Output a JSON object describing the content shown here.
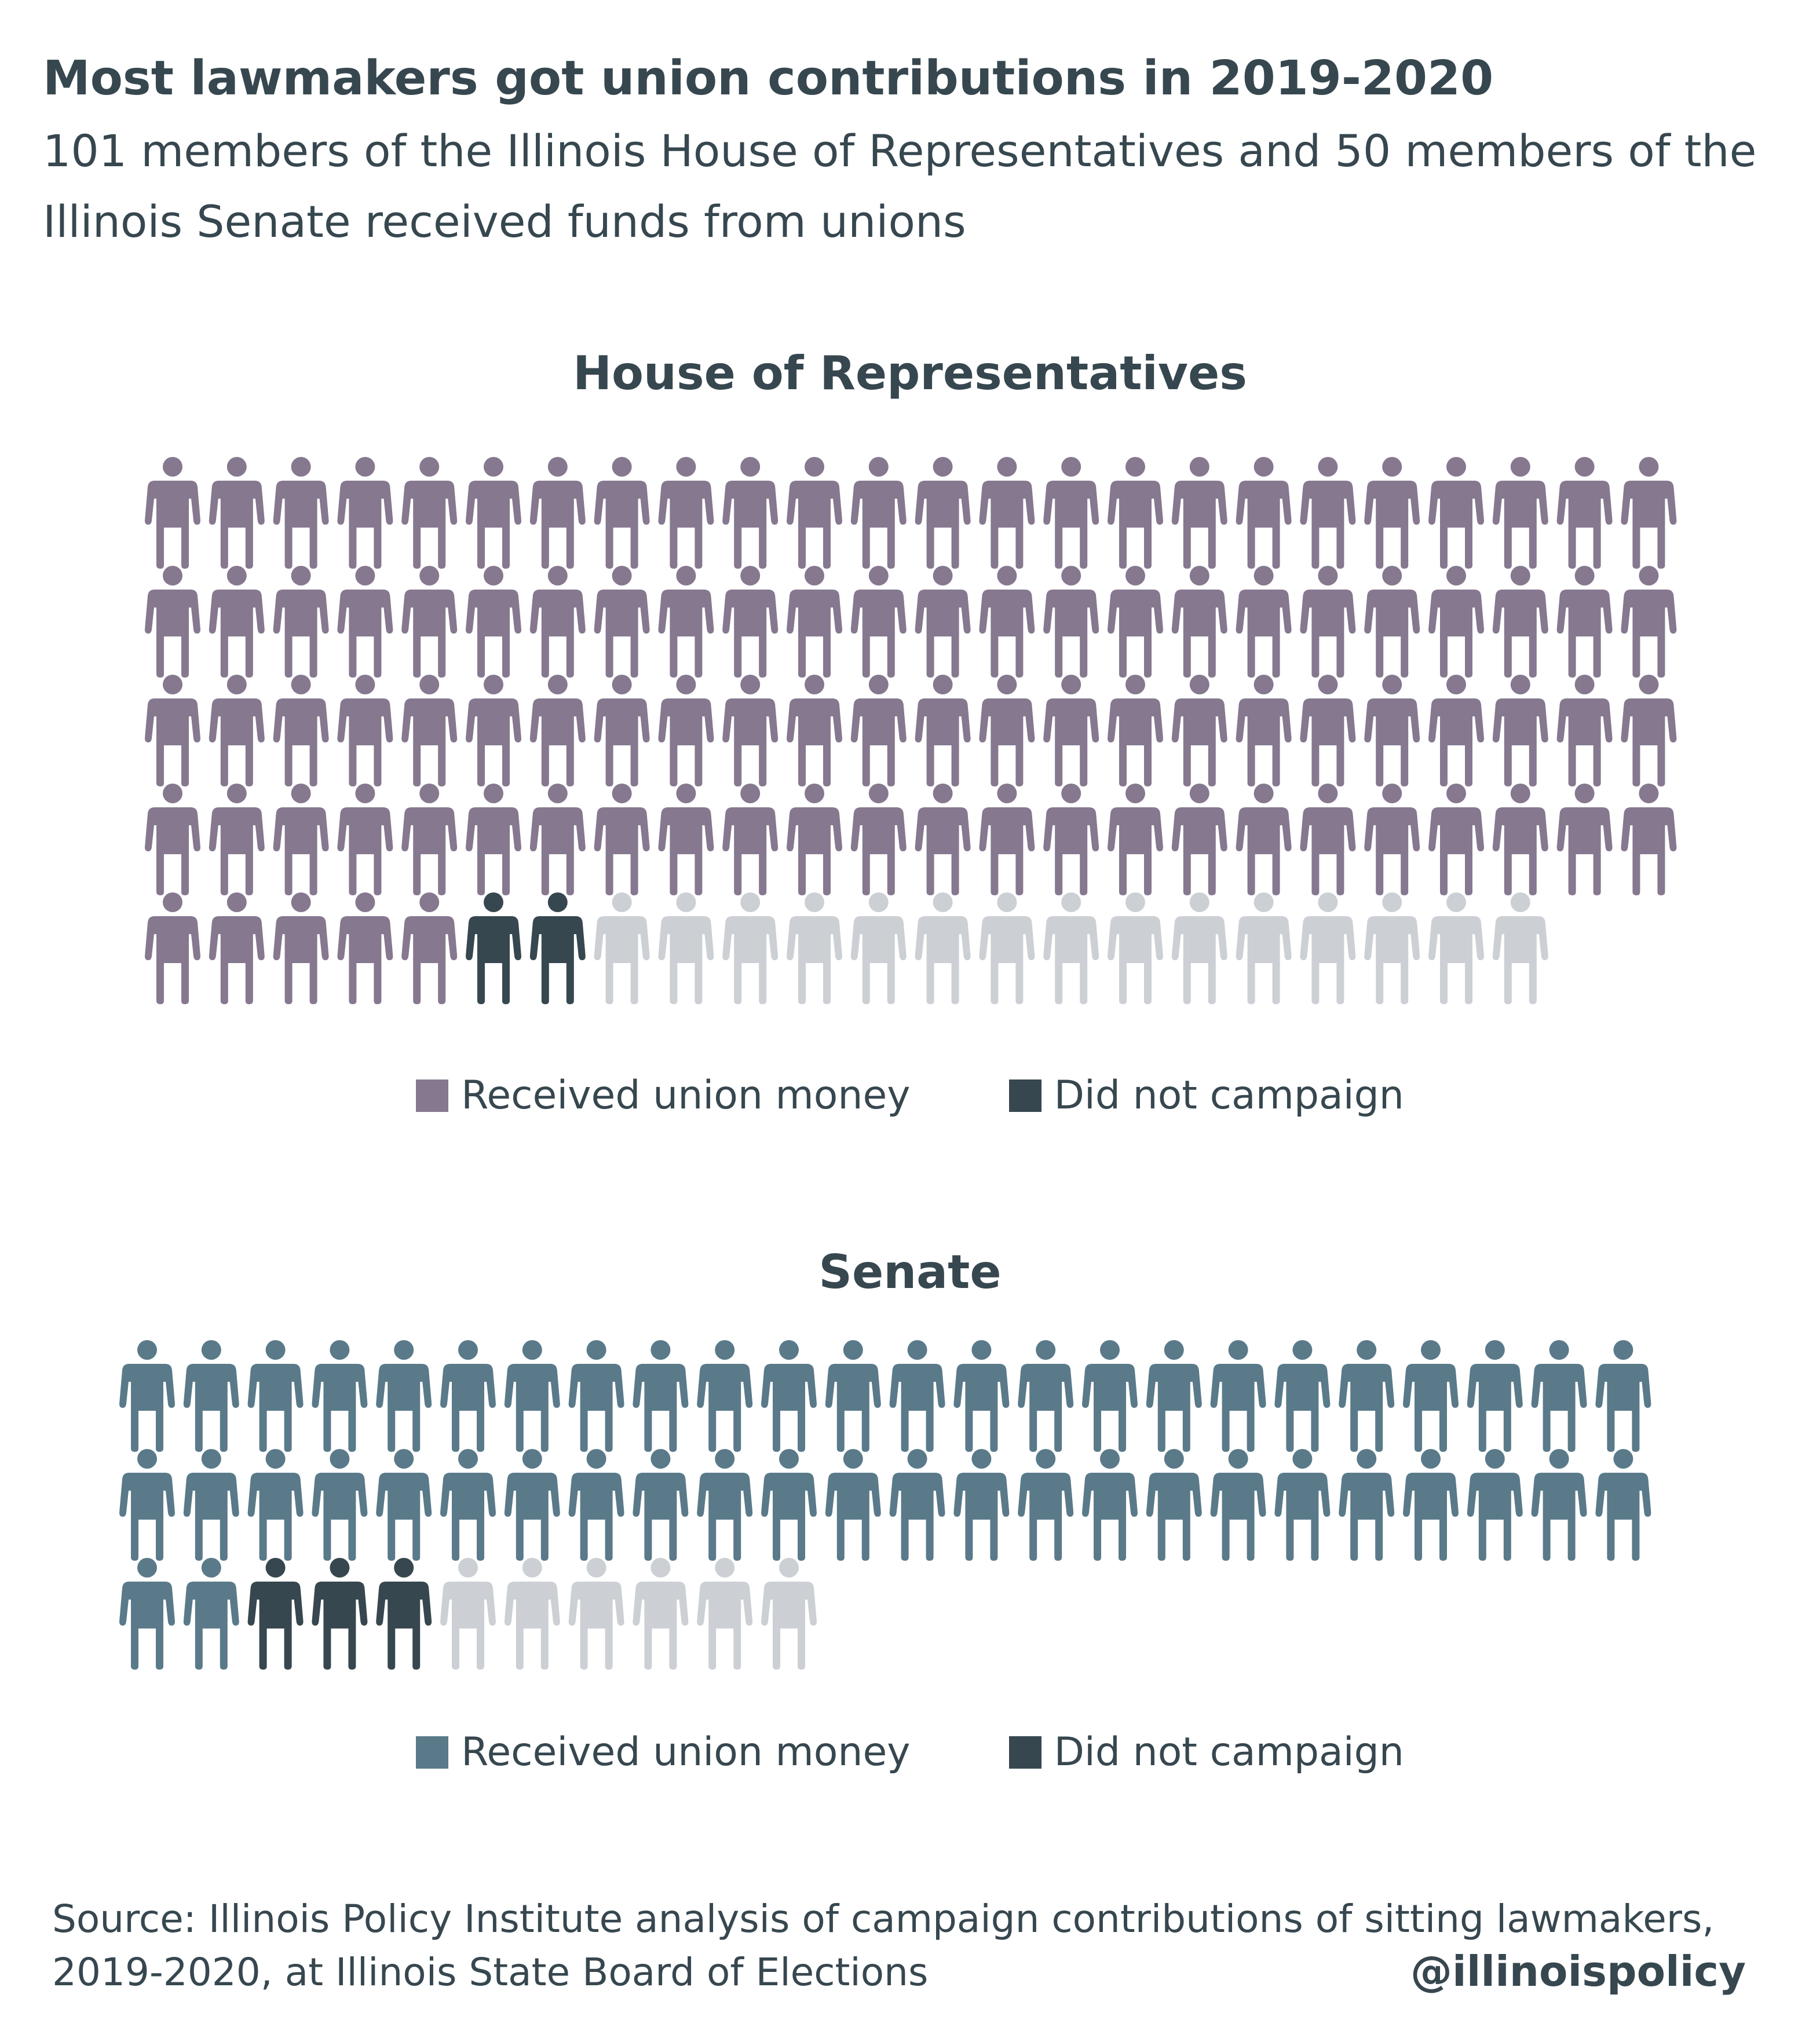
{
  "header": {
    "title": "Most lawmakers got union contributions in 2019-2020",
    "subtitle": "101 members of the Illinois House of Representatives and 50 members of the Illinois Senate received funds from unions"
  },
  "colors": {
    "house_received": "#85788f",
    "senate_received": "#5a7a8a",
    "did_not_campaign": "#37474f",
    "other": "#ccd0d4"
  },
  "chart_data": [
    {
      "type": "table",
      "chart_form": "isotype",
      "title": "House of Representatives",
      "icon": "person-icon",
      "icons_per_row": 24,
      "groups": [
        {
          "name": "Received union money",
          "count": 101,
          "color": "#85788f",
          "in_legend": true
        },
        {
          "name": "Did not campaign",
          "count": 2,
          "color": "#37474f",
          "in_legend": true
        },
        {
          "name": "",
          "count": 15,
          "color": "#ccd0d4",
          "in_legend": false
        }
      ]
    },
    {
      "type": "table",
      "chart_form": "isotype",
      "title": "Senate",
      "icon": "person-icon",
      "icons_per_row": 24,
      "groups": [
        {
          "name": "Received union money",
          "count": 50,
          "color": "#5a7a8a",
          "in_legend": true
        },
        {
          "name": "Did not campaign",
          "count": 3,
          "color": "#37474f",
          "in_legend": true
        },
        {
          "name": "",
          "count": 6,
          "color": "#ccd0d4",
          "in_legend": false
        }
      ]
    }
  ],
  "legends": {
    "house": [
      {
        "label": "Received union money",
        "color": "#85788f"
      },
      {
        "label": "Did not campaign",
        "color": "#37474f"
      }
    ],
    "senate": [
      {
        "label": "Received union money",
        "color": "#5a7a8a"
      },
      {
        "label": "Did not campaign",
        "color": "#37474f"
      }
    ]
  },
  "footer": {
    "source": "Source:  Illinois Policy Institute analysis of campaign contributions of sitting lawmakers, 2019-2020, at Illinois State Board of Elections",
    "handle": "@illinoispolicy"
  }
}
